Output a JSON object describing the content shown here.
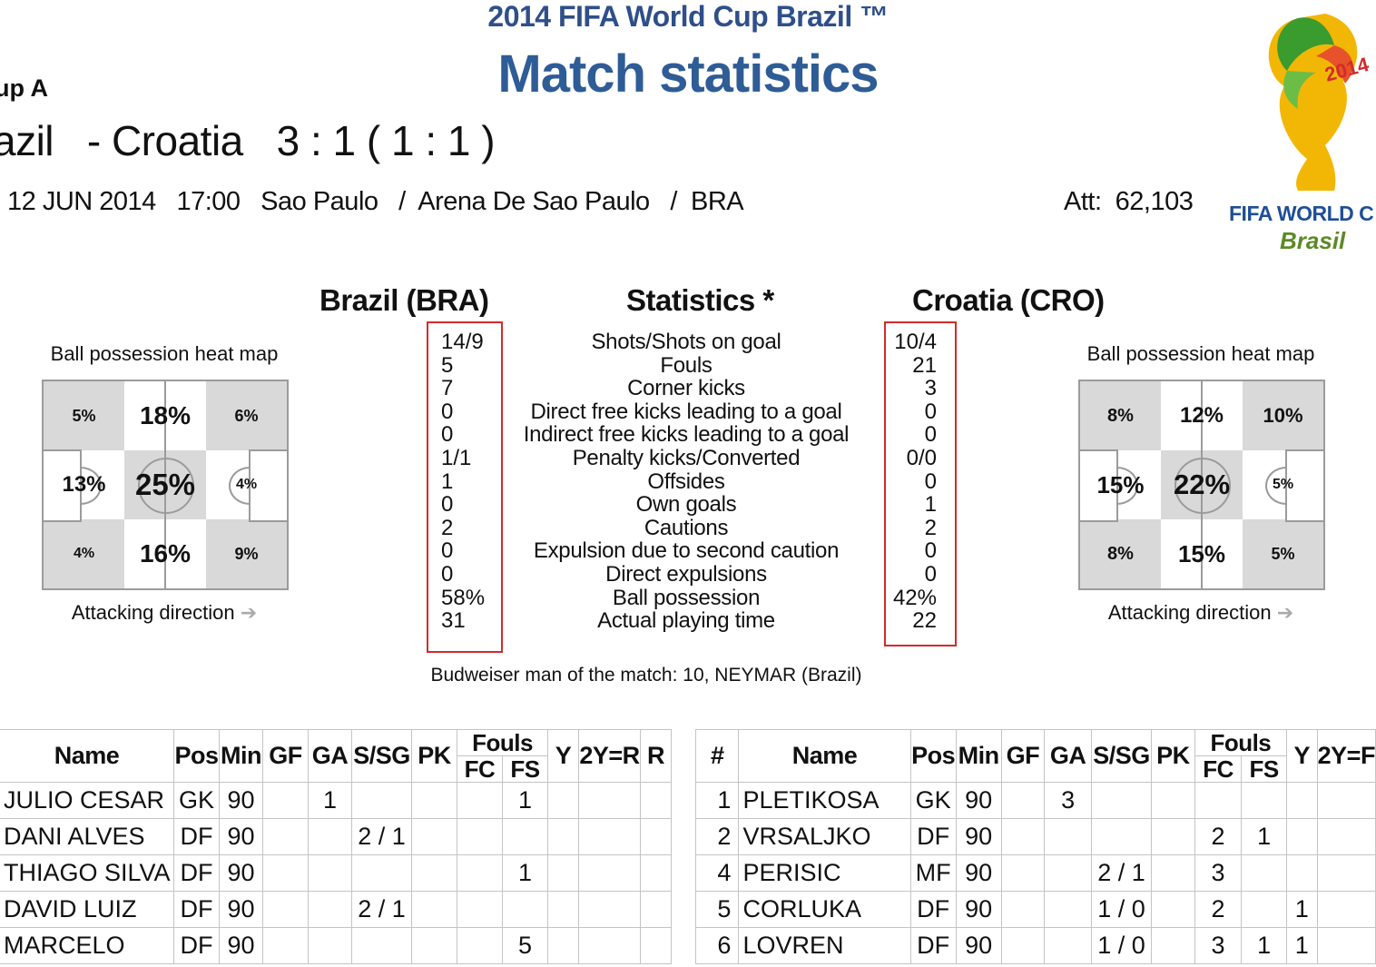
{
  "header": {
    "subtitle": "2014 FIFA World Cup Brazil ™",
    "title": "Match statistics",
    "group": "up A",
    "match_line": "azil   - Croatia   3 : 1 ( 1 : 1 )",
    "meta_line": "12 JUN 2014   17:00   Sao Paulo   /  Arena De Sao Paulo   /  BRA",
    "attendance": "Att:  62,103"
  },
  "logo": {
    "line1": "FIFA WORLD C",
    "line2": "Brasil",
    "year": "2014"
  },
  "teams": {
    "home": "Brazil (BRA)",
    "stats_title": "Statistics *",
    "away": "Croatia (CRO)"
  },
  "heatmaps": {
    "home": {
      "title": "Ball possession heat map",
      "cells": [
        "5%",
        "18%",
        "6%",
        "13%",
        "25%",
        "4%",
        "4%",
        "16%",
        "9%"
      ],
      "footer": "Attacking direction",
      "arrow": "➔"
    },
    "away": {
      "title": "Ball possession heat map",
      "cells": [
        "8%",
        "12%",
        "10%",
        "15%",
        "22%",
        "5%",
        "8%",
        "15%",
        "5%"
      ],
      "footer": "Attacking direction",
      "arrow": "➔"
    }
  },
  "statistics": {
    "labels": [
      "Shots/Shots on goal",
      "Fouls",
      "Corner kicks",
      "Direct free kicks leading to a goal",
      "Indirect free kicks leading to a goal",
      "Penalty kicks/Converted",
      "Offsides",
      "Own goals",
      "Cautions",
      "Expulsion due to second caution",
      "Direct expulsions",
      "Ball possession",
      "Actual playing time"
    ],
    "home": [
      "14/9",
      "5",
      "7",
      "0",
      "0",
      "1/1",
      "1",
      "0",
      "2",
      "0",
      "0",
      "58%",
      "31"
    ],
    "away": [
      "10/4",
      "21",
      "3",
      "0",
      "0",
      "0/0",
      "0",
      "1",
      "2",
      "0",
      "0",
      "42%",
      "22"
    ]
  },
  "man_of_match": "Budweiser man of the match:  10,  NEYMAR (Brazil)",
  "home_table": {
    "headers": {
      "name": "Name",
      "pos": "Pos",
      "min": "Min",
      "gf": "GF",
      "ga": "GA",
      "ssg": "S/SG",
      "pk": "PK",
      "fouls": "Fouls",
      "fc": "FC",
      "fs": "FS",
      "y": "Y",
      "y2r": "2Y=R",
      "r": "R"
    },
    "rows": [
      {
        "name": "JULIO CESAR",
        "pos": "GK",
        "min": "90",
        "gf": "",
        "ga": "1",
        "ssg": "",
        "pk": "",
        "fc": "",
        "fs": "1",
        "y": "",
        "y2r": "",
        "r": ""
      },
      {
        "name": "DANI ALVES",
        "pos": "DF",
        "min": "90",
        "gf": "",
        "ga": "",
        "ssg": "2 / 1",
        "pk": "",
        "fc": "",
        "fs": "",
        "y": "",
        "y2r": "",
        "r": ""
      },
      {
        "name": "THIAGO SILVA",
        "pos": "DF",
        "min": "90",
        "gf": "",
        "ga": "",
        "ssg": "",
        "pk": "",
        "fc": "",
        "fs": "1",
        "y": "",
        "y2r": "",
        "r": ""
      },
      {
        "name": "DAVID LUIZ",
        "pos": "DF",
        "min": "90",
        "gf": "",
        "ga": "",
        "ssg": "2 / 1",
        "pk": "",
        "fc": "",
        "fs": "",
        "y": "",
        "y2r": "",
        "r": ""
      },
      {
        "name": "MARCELO",
        "pos": "DF",
        "min": "90",
        "gf": "",
        "ga": "",
        "ssg": "",
        "pk": "",
        "fc": "",
        "fs": "5",
        "y": "",
        "y2r": "",
        "r": ""
      }
    ]
  },
  "away_table": {
    "headers": {
      "num": "#",
      "name": "Name",
      "pos": "Pos",
      "min": "Min",
      "gf": "GF",
      "ga": "GA",
      "ssg": "S/SG",
      "pk": "PK",
      "fouls": "Fouls",
      "fc": "FC",
      "fs": "FS",
      "y": "Y",
      "y2r": "2Y=F"
    },
    "rows": [
      {
        "num": "1",
        "name": "PLETIKOSA",
        "pos": "GK",
        "min": "90",
        "gf": "",
        "ga": "3",
        "ssg": "",
        "pk": "",
        "fc": "",
        "fs": "",
        "y": "",
        "y2r": ""
      },
      {
        "num": "2",
        "name": "VRSALJKO",
        "pos": "DF",
        "min": "90",
        "gf": "",
        "ga": "",
        "ssg": "",
        "pk": "",
        "fc": "2",
        "fs": "1",
        "y": "",
        "y2r": ""
      },
      {
        "num": "4",
        "name": "PERISIC",
        "pos": "MF",
        "min": "90",
        "gf": "",
        "ga": "",
        "ssg": "2 / 1",
        "pk": "",
        "fc": "3",
        "fs": "",
        "y": "",
        "y2r": ""
      },
      {
        "num": "5",
        "name": "CORLUKA",
        "pos": "DF",
        "min": "90",
        "gf": "",
        "ga": "",
        "ssg": "1 / 0",
        "pk": "",
        "fc": "2",
        "fs": "",
        "y": "1",
        "y2r": ""
      },
      {
        "num": "6",
        "name": "LOVREN",
        "pos": "DF",
        "min": "90",
        "gf": "",
        "ga": "",
        "ssg": "1 / 0",
        "pk": "",
        "fc": "3",
        "fs": "1",
        "y": "1",
        "y2r": ""
      }
    ]
  },
  "colors": {
    "title_blue": "#2e5c96",
    "highlight_red": "#d22b2b",
    "heat_grey": "#d9d9d9"
  }
}
